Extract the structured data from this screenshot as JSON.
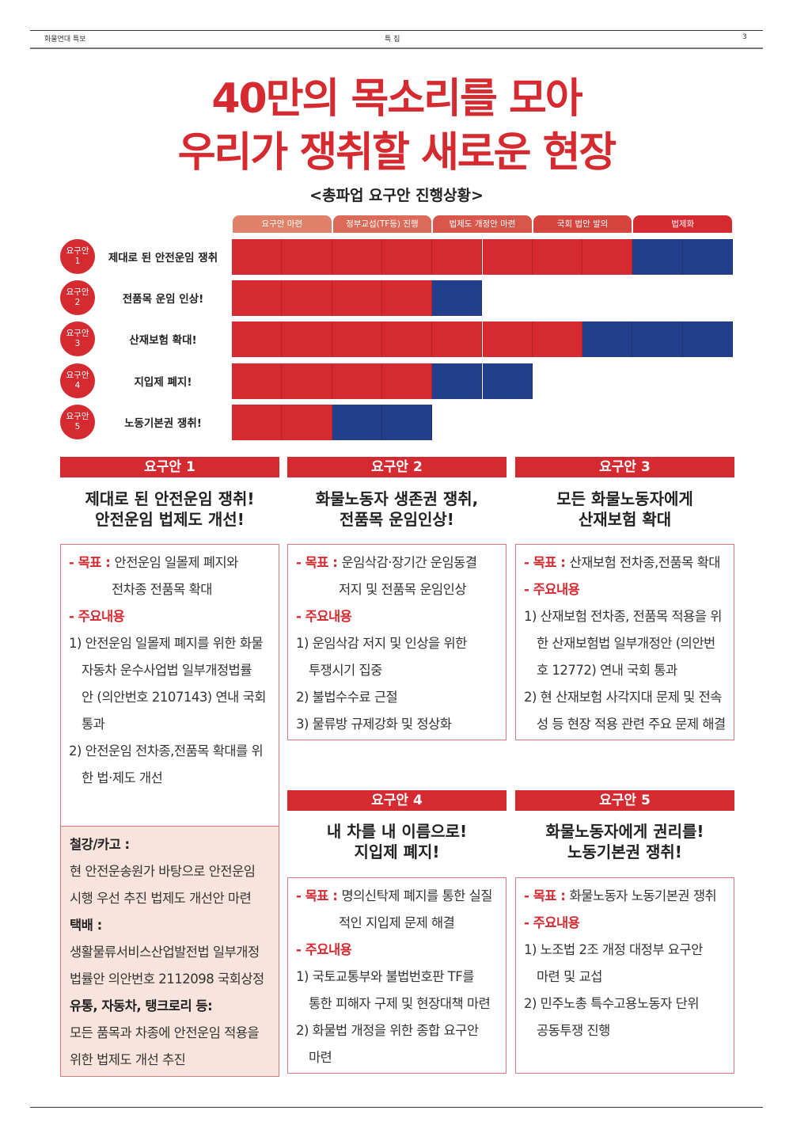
{
  "running_head": {
    "left": "화물연대 특보",
    "center": "특 집",
    "page": "3"
  },
  "headline": {
    "line1": "40만의 목소리를 모아",
    "line2": "우리가 쟁취할 새로운 현장"
  },
  "subtitle": "<총파업 요구안 진행상황>",
  "progress": {
    "colors": {
      "done": "#d42a30",
      "current": "#233e8b"
    },
    "stages": [
      {
        "label": "요구안 마련",
        "color": "#e0826a"
      },
      {
        "label": "정부교섭(TF등) 진행",
        "color": "#dc6a58"
      },
      {
        "label": "법제도 개정안 마련",
        "color": "#d9574a"
      },
      {
        "label": "국회 법안 발의",
        "color": "#d6443e"
      },
      {
        "label": "법제화",
        "color": "#d42a30"
      }
    ],
    "rows": [
      {
        "badge1": "요구안",
        "badge2": "1",
        "label": "제대로 된 안전운임 쟁취",
        "done_half_stages": 8,
        "current_half_stages": 2
      },
      {
        "badge1": "요구안",
        "badge2": "2",
        "label": "전품목 운임 인상!",
        "done_half_stages": 4,
        "current_half_stages": 1
      },
      {
        "badge1": "요구안",
        "badge2": "3",
        "label": "산재보험 확대!",
        "done_half_stages": 7,
        "current_half_stages": 3
      },
      {
        "badge1": "요구안",
        "badge2": "4",
        "label": "지입제 폐지!",
        "done_half_stages": 4,
        "current_half_stages": 2
      },
      {
        "badge1": "요구안",
        "badge2": "5",
        "label": "노동기본권 쟁취!",
        "done_half_stages": 2,
        "current_half_stages": 2
      }
    ]
  },
  "cards": [
    {
      "header": "요구안 1",
      "title1": "제대로 된 안전운임 쟁취!",
      "title2": "안전운임 법제도 개선!",
      "lines": [
        {
          "k": "goal",
          "label": "- 목표 : ",
          "text": "안전운임 일몰제 폐지와"
        },
        {
          "k": "gcont",
          "text": "전차종 전품목 확대"
        },
        {
          "k": "head",
          "text": "- 주요내용"
        },
        {
          "k": "item",
          "text": "1) 안전운임 일몰제 폐지를 위한 화물"
        },
        {
          "k": "icont",
          "text": "자동차 운수사업법 일부개정법률"
        },
        {
          "k": "icont",
          "text": "안 (의안번호 2107143) 연내 국회"
        },
        {
          "k": "icont",
          "text": "통과"
        },
        {
          "k": "item",
          "text": "2) 안전운임 전차종,전품목 확대를 위"
        },
        {
          "k": "icont",
          "text": "한 법·제도 개선"
        }
      ],
      "extra": [
        {
          "k": "b",
          "text": "철강/카고 :"
        },
        {
          "k": "p",
          "text": "현 안전운송원가 바탕으로 안전운임"
        },
        {
          "k": "p",
          "text": "시행 우선 추진 법제도 개선안 마련"
        },
        {
          "k": "b",
          "text": "택배 :"
        },
        {
          "k": "p",
          "text": "생활물류서비스산업발전법 일부개정"
        },
        {
          "k": "p",
          "text": "법률안 의안번호 2112098 국회상정"
        },
        {
          "k": "b",
          "text": "유통, 자동차, 탱크로리 등:"
        },
        {
          "k": "p",
          "text": "모든 품목과 차종에 안전운임 적용을"
        },
        {
          "k": "p",
          "text": "위한 법제도 개선 추진"
        }
      ]
    },
    {
      "header": "요구안 2",
      "title1": "화물노동자 생존권 쟁취,",
      "title2": "전품목 운임인상!",
      "lines": [
        {
          "k": "goal",
          "label": "- 목표 : ",
          "text": "운임삭감·장기간 운임동결"
        },
        {
          "k": "gcont",
          "text": "저지 및 전품목 운임인상"
        },
        {
          "k": "head",
          "text": "- 주요내용"
        },
        {
          "k": "item",
          "text": "1) 운임삭감 저지 및 인상을 위한"
        },
        {
          "k": "icont",
          "text": "투쟁시기 집중"
        },
        {
          "k": "item",
          "text": "2) 불법수수료 근절"
        },
        {
          "k": "item",
          "text": "3) 물류방 규제강화 및 정상화"
        }
      ]
    },
    {
      "header": "요구안 3",
      "title1": "모든 화물노동자에게",
      "title2": "산재보험 확대",
      "lines": [
        {
          "k": "goal",
          "label": "- 목표 : ",
          "text": "산재보험 전차종,전품목 확대"
        },
        {
          "k": "head",
          "text": "- 주요내용"
        },
        {
          "k": "item",
          "text": "1) 산재보험 전차종, 전품목 적용을 위"
        },
        {
          "k": "icont",
          "text": "한 산재보험법 일부개정안 (의안번"
        },
        {
          "k": "icont",
          "text": "호 12772) 연내 국회 통과"
        },
        {
          "k": "item",
          "text": "2) 현 산재보험 사각지대 문제 및 전속"
        },
        {
          "k": "icont",
          "text": "성 등 현장 적용 관련 주요 문제 해결"
        }
      ]
    },
    {
      "header": "요구안 4",
      "title1": "내 차를 내 이름으로!",
      "title2": "지입제 폐지!",
      "lines": [
        {
          "k": "goal",
          "label": "- 목표 : ",
          "text": "명의신탁제 폐지를 통한 실질"
        },
        {
          "k": "gcont",
          "text": "적인 지입제 문제 해결"
        },
        {
          "k": "head",
          "text": "- 주요내용"
        },
        {
          "k": "item",
          "text": "1) 국토교통부와 불법번호판 TF를"
        },
        {
          "k": "icont",
          "text": "통한 피해자 구제 및 현장대책 마련"
        },
        {
          "k": "item",
          "text": "2) 화물법 개정을 위한 종합 요구안"
        },
        {
          "k": "icont",
          "text": "마련"
        }
      ]
    },
    {
      "header": "요구안 5",
      "title1": "화물노동자에게 권리를!",
      "title2": "노동기본권 쟁취!",
      "lines": [
        {
          "k": "goal",
          "label": "- 목표 : ",
          "text": "화물노동자 노동기본권 쟁취"
        },
        {
          "k": "head",
          "text": "- 주요내용"
        },
        {
          "k": "item",
          "text": "1) 노조법 2조 개정 대정부 요구안"
        },
        {
          "k": "icont",
          "text": "마련 및 교섭"
        },
        {
          "k": "item",
          "text": "2) 민주노총 특수고용노동자 단위"
        },
        {
          "k": "icont",
          "text": "공동투쟁 진행"
        }
      ]
    }
  ]
}
